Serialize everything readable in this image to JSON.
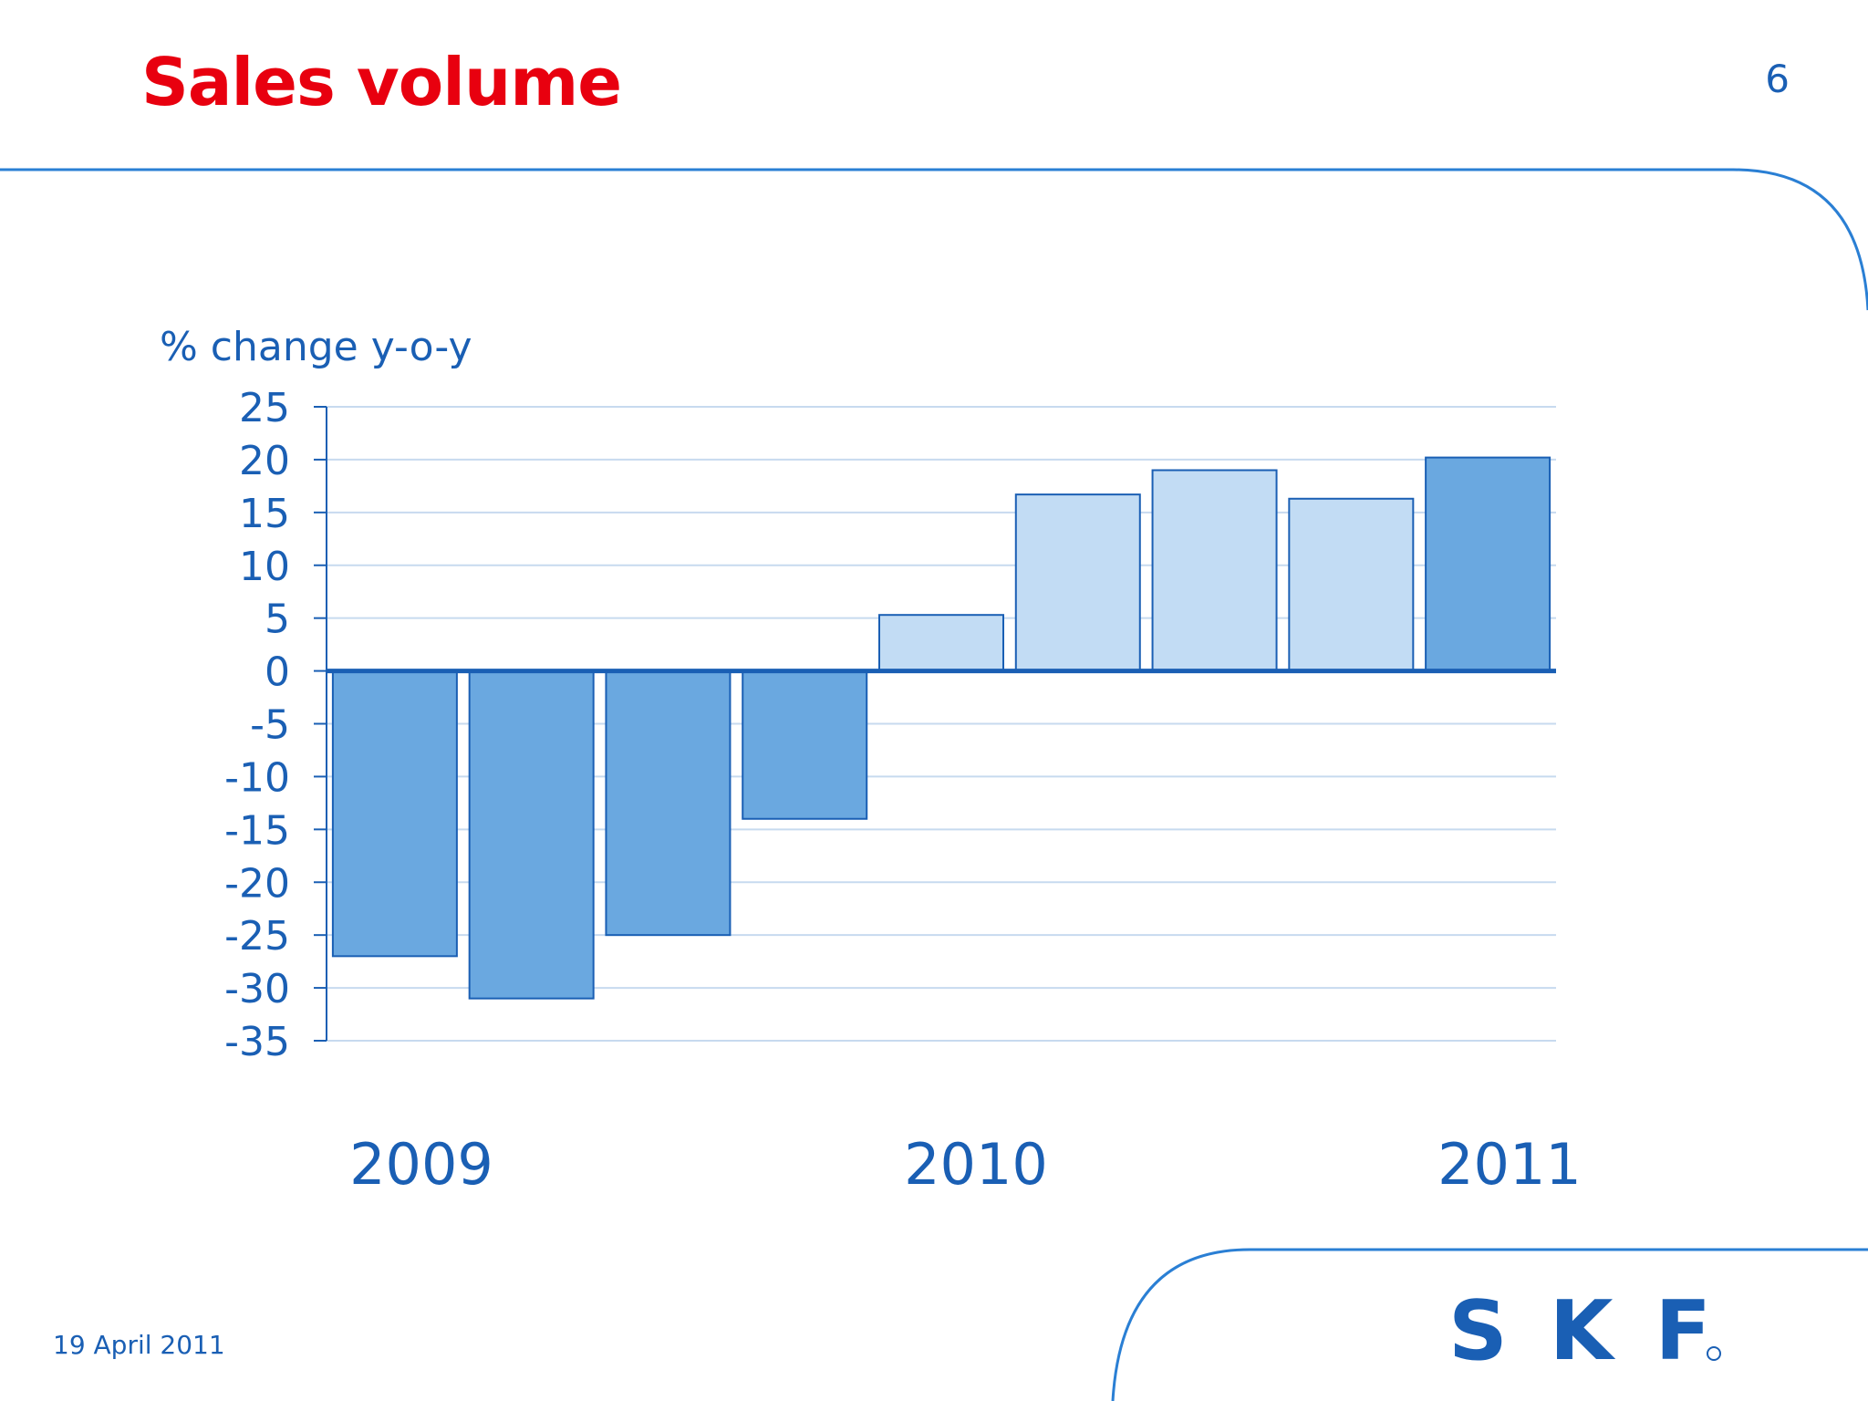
{
  "page": {
    "title": "Sales volume",
    "page_number": "6",
    "date": "19 April 2011",
    "logo_text": "SKF"
  },
  "colors": {
    "title": "#e8000f",
    "text": "#1a5fb4",
    "bar_dark": "#6aa8e0",
    "bar_light": "#c2dcf4",
    "bar_stroke": "#1a5fb4",
    "grid": "#c7daef",
    "frame": "#2a7fd4"
  },
  "chart_data": {
    "type": "bar",
    "ylabel": "% change y-o-y",
    "ylim": [
      -35,
      25
    ],
    "yticks": [
      25,
      20,
      15,
      10,
      5,
      0,
      -5,
      -10,
      -15,
      -20,
      -25,
      -30,
      -35
    ],
    "values": [
      -27,
      -31,
      -25,
      -14,
      5.3,
      16.7,
      19,
      16.3,
      20.2
    ],
    "bar_shades": [
      "dark",
      "dark",
      "dark",
      "dark",
      "light",
      "light",
      "light",
      "light",
      "dark"
    ],
    "year_labels": [
      "2009",
      "2010",
      "2011"
    ],
    "grid": true
  }
}
